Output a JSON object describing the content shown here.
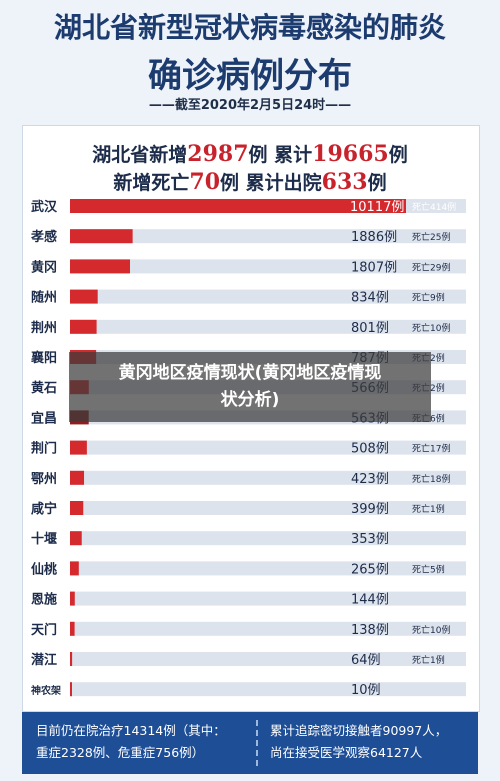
{
  "header": {
    "title_line1": "湖北省新型冠状病毒感染的肺炎",
    "title_line2": "确诊病例分布",
    "date_line": "——截至2020年2月5日24时——"
  },
  "summary": {
    "line1_prefix": "湖北省新增",
    "line1_new": "2987",
    "line1_mid": "例  累计",
    "line1_total": "19665",
    "line1_suffix": "例",
    "line2_prefix": "新增死亡",
    "line2_deaths": "70",
    "line2_mid": "例  累计出院",
    "line2_recovered": "633",
    "line2_suffix": "例"
  },
  "chart_data": {
    "type": "bar",
    "orientation": "horizontal",
    "categories": [
      "武汉",
      "孝感",
      "黄冈",
      "随州",
      "荆州",
      "襄阳",
      "黄石",
      "宜昌",
      "荆门",
      "鄂州",
      "咸宁",
      "十堰",
      "仙桃",
      "恩施",
      "天门",
      "潜江",
      "神农架"
    ],
    "values": [
      10117,
      1886,
      1807,
      834,
      801,
      787,
      566,
      563,
      508,
      423,
      399,
      353,
      265,
      144,
      138,
      64,
      10
    ],
    "value_labels": [
      "10117例",
      "1886例",
      "1807例",
      "834例",
      "801例",
      "787例",
      "566例",
      "563例",
      "508例",
      "423例",
      "399例",
      "353例",
      "265例",
      "144例",
      "138例",
      "64例",
      "10例"
    ],
    "death_labels": [
      "死亡414例",
      "死亡25例",
      "死亡29例",
      "死亡9例",
      "死亡10例",
      "死亡2例",
      "死亡2例",
      "死亡6例",
      "死亡17例",
      "死亡18例",
      "死亡1例",
      "",
      "死亡5例",
      "",
      "死亡10例",
      "死亡1例",
      ""
    ],
    "xlim": [
      0,
      10117
    ],
    "grid": false,
    "legend": "none"
  },
  "colors": {
    "bar": "#d42a2e",
    "bar_dark": "#8e1d22",
    "track": "#dde3ec",
    "title": "#1c3b6e",
    "accent": "#c8232c",
    "footer": "#1e4e96"
  },
  "overlay": {
    "line1": "黄冈地区疫情现状(黄冈地区疫情现",
    "line2": "状分析)"
  },
  "footer": {
    "left_line1": "目前仍在院治疗14314例（其中：",
    "left_line2": "重症2328例、危重症756例）",
    "right_line1": "累计追踪密切接触者90997人，",
    "right_line2": "尚在接受医学观察64127人"
  }
}
